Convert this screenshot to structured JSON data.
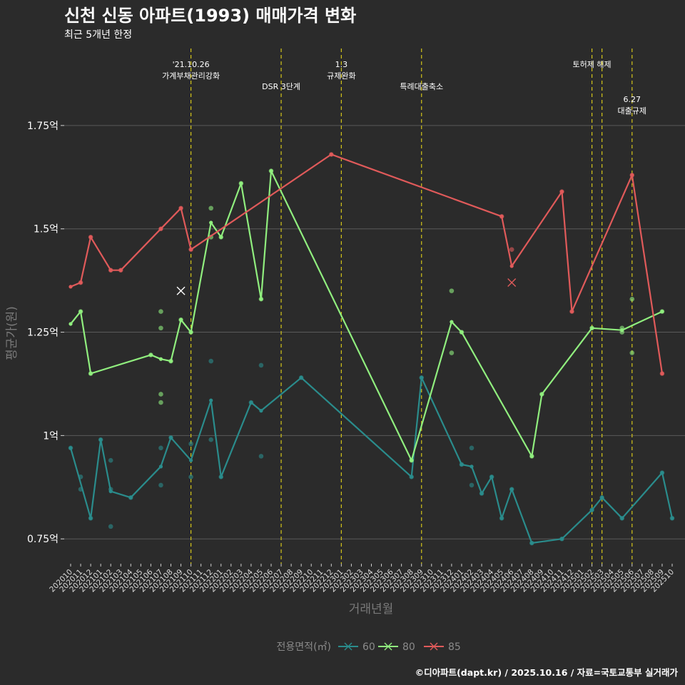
{
  "chart_data": {
    "type": "line",
    "title": "신천 신동 아파트(1993) 매매가격 변화",
    "subtitle": "최근 5개년 한정",
    "xlabel": "거래년월",
    "ylabel": "평균가(원)",
    "ylim": [
      0.69,
      1.95
    ],
    "yticks": [
      {
        "value": 0.75,
        "label": "0.75억"
      },
      {
        "value": 1.0,
        "label": "1억"
      },
      {
        "value": 1.25,
        "label": "1.25억"
      },
      {
        "value": 1.5,
        "label": "1.5억"
      },
      {
        "value": 1.75,
        "label": "1.75억"
      }
    ],
    "categories": [
      "202010",
      "202011",
      "202012",
      "202101",
      "202102",
      "202103",
      "202104",
      "202105",
      "202106",
      "202107",
      "202108",
      "202109",
      "202110",
      "202111",
      "202112",
      "202201",
      "202202",
      "202203",
      "202204",
      "202205",
      "202206",
      "202207",
      "202208",
      "202209",
      "202210",
      "202211",
      "202212",
      "202301",
      "202302",
      "202303",
      "202304",
      "202305",
      "202306",
      "202307",
      "202308",
      "202309",
      "202310",
      "202311",
      "202312",
      "202401",
      "202402",
      "202403",
      "202404",
      "202405",
      "202406",
      "202407",
      "202408",
      "202409",
      "202410",
      "202411",
      "202412",
      "202501",
      "202502",
      "202503",
      "202504",
      "202505",
      "202506",
      "202507",
      "202508",
      "202509",
      "202510"
    ],
    "events": [
      {
        "month": "202110",
        "label_lines": [
          "'21.10.26",
          "가계부채관리강화"
        ],
        "level": 0
      },
      {
        "month": "202207",
        "label_lines": [
          "DSR 3단계"
        ],
        "level": 1
      },
      {
        "month": "202301",
        "label_lines": [
          "1.3",
          "규제완화"
        ],
        "level": 0
      },
      {
        "month": "202309",
        "label_lines": [
          "특례대출축소"
        ],
        "level": 1
      },
      {
        "month": "202502",
        "label_lines": [
          "토허제 해제"
        ],
        "level": 0
      },
      {
        "month": "202503",
        "label_lines": [],
        "level": 0
      },
      {
        "month": "202506",
        "label_lines": [
          "6.27",
          "대출규제"
        ],
        "level": 2
      }
    ],
    "series": [
      {
        "name": "60",
        "color": "#2a8c8c",
        "line": [
          [
            "202010",
            0.97
          ],
          [
            "202012",
            0.8
          ],
          [
            "202101",
            0.99
          ],
          [
            "202102",
            0.865
          ],
          [
            "202104",
            0.85
          ],
          [
            "202107",
            0.925
          ],
          [
            "202108",
            0.995
          ],
          [
            "202110",
            0.94
          ],
          [
            "202112",
            1.085
          ],
          [
            "202201",
            0.9
          ],
          [
            "202204",
            1.08
          ],
          [
            "202205",
            1.06
          ],
          [
            "202209",
            1.14
          ],
          [
            "202308",
            0.9
          ],
          [
            "202309",
            1.14
          ],
          [
            "202401",
            0.93
          ],
          [
            "202402",
            0.925
          ],
          [
            "202403",
            0.86
          ],
          [
            "202404",
            0.9
          ],
          [
            "202405",
            0.8
          ],
          [
            "202406",
            0.87
          ],
          [
            "202408",
            0.74
          ],
          [
            "202411",
            0.75
          ],
          [
            "202502",
            0.82
          ],
          [
            "202503",
            0.85
          ],
          [
            "202505",
            0.8
          ],
          [
            "202509",
            0.91
          ],
          [
            "202510",
            0.8
          ]
        ],
        "points": [
          [
            "202010",
            0.97
          ],
          [
            "202011",
            0.9
          ],
          [
            "202011",
            0.87
          ],
          [
            "202012",
            0.8
          ],
          [
            "202101",
            0.99
          ],
          [
            "202102",
            0.87
          ],
          [
            "202102",
            0.94
          ],
          [
            "202102",
            0.78
          ],
          [
            "202104",
            0.85
          ],
          [
            "202107",
            0.97
          ],
          [
            "202107",
            0.88
          ],
          [
            "202108",
            0.995
          ],
          [
            "202110",
            0.98
          ],
          [
            "202110",
            0.9
          ],
          [
            "202112",
            1.18
          ],
          [
            "202112",
            0.99
          ],
          [
            "202201",
            0.9
          ],
          [
            "202204",
            1.08
          ],
          [
            "202205",
            1.17
          ],
          [
            "202205",
            0.95
          ],
          [
            "202209",
            1.14
          ],
          [
            "202308",
            0.9
          ],
          [
            "202309",
            1.14
          ],
          [
            "202401",
            0.93
          ],
          [
            "202402",
            0.97
          ],
          [
            "202402",
            0.88
          ],
          [
            "202403",
            0.86
          ],
          [
            "202404",
            0.9
          ],
          [
            "202405",
            0.8
          ],
          [
            "202406",
            0.87
          ],
          [
            "202408",
            0.74
          ],
          [
            "202411",
            0.75
          ],
          [
            "202502",
            0.82
          ],
          [
            "202503",
            0.85
          ],
          [
            "202505",
            0.8
          ],
          [
            "202509",
            0.91
          ],
          [
            "202510",
            0.8
          ]
        ],
        "crosses": []
      },
      {
        "name": "80",
        "color": "#90ee7e",
        "line": [
          [
            "202010",
            1.27
          ],
          [
            "202011",
            1.3
          ],
          [
            "202012",
            1.15
          ],
          [
            "202106",
            1.195
          ],
          [
            "202107",
            1.185
          ],
          [
            "202108",
            1.18
          ],
          [
            "202109",
            1.28
          ],
          [
            "202110",
            1.25
          ],
          [
            "202112",
            1.515
          ],
          [
            "202201",
            1.48
          ],
          [
            "202203",
            1.61
          ],
          [
            "202205",
            1.33
          ],
          [
            "202206",
            1.64
          ],
          [
            "202308",
            0.94
          ],
          [
            "202312",
            1.275
          ],
          [
            "202401",
            1.25
          ],
          [
            "202408",
            0.95
          ],
          [
            "202409",
            1.1
          ],
          [
            "202502",
            1.26
          ],
          [
            "202505",
            1.255
          ],
          [
            "202509",
            1.3
          ]
        ],
        "points": [
          [
            "202011",
            1.3
          ],
          [
            "202012",
            1.15
          ],
          [
            "202106",
            1.195
          ],
          [
            "202107",
            1.3
          ],
          [
            "202107",
            1.26
          ],
          [
            "202107",
            1.1
          ],
          [
            "202107",
            1.08
          ],
          [
            "202108",
            1.18
          ],
          [
            "202109",
            1.28
          ],
          [
            "202110",
            1.25
          ],
          [
            "202112",
            1.55
          ],
          [
            "202112",
            1.48
          ],
          [
            "202201",
            1.48
          ],
          [
            "202203",
            1.61
          ],
          [
            "202205",
            1.33
          ],
          [
            "202206",
            1.64
          ],
          [
            "202308",
            0.94
          ],
          [
            "202312",
            1.35
          ],
          [
            "202312",
            1.2
          ],
          [
            "202401",
            1.25
          ],
          [
            "202408",
            0.95
          ],
          [
            "202409",
            1.1
          ],
          [
            "202502",
            1.26
          ],
          [
            "202505",
            1.26
          ],
          [
            "202505",
            1.25
          ],
          [
            "202506",
            1.33
          ],
          [
            "202506",
            1.2
          ],
          [
            "202509",
            1.3
          ]
        ],
        "crosses": [
          [
            "202109",
            1.35
          ]
        ]
      },
      {
        "name": "85",
        "color": "#e05a5a",
        "line": [
          [
            "202010",
            1.36
          ],
          [
            "202011",
            1.37
          ],
          [
            "202012",
            1.48
          ],
          [
            "202102",
            1.4
          ],
          [
            "202103",
            1.4
          ],
          [
            "202107",
            1.5
          ],
          [
            "202109",
            1.55
          ],
          [
            "202110",
            1.45
          ],
          [
            "202212",
            1.68
          ],
          [
            "202405",
            1.53
          ],
          [
            "202406",
            1.41
          ],
          [
            "202411",
            1.59
          ],
          [
            "202412",
            1.3
          ],
          [
            "202506",
            1.63
          ],
          [
            "202509",
            1.15
          ]
        ],
        "points": [
          [
            "202011",
            1.37
          ],
          [
            "202012",
            1.48
          ],
          [
            "202102",
            1.4
          ],
          [
            "202103",
            1.4
          ],
          [
            "202107",
            1.5
          ],
          [
            "202109",
            1.55
          ],
          [
            "202110",
            1.45
          ],
          [
            "202212",
            1.68
          ],
          [
            "202405",
            1.53
          ],
          [
            "202406",
            1.45
          ],
          [
            "202411",
            1.59
          ],
          [
            "202412",
            1.3
          ],
          [
            "202506",
            1.63
          ],
          [
            "202509",
            1.15
          ]
        ],
        "crosses": [
          [
            "202406",
            1.37
          ]
        ]
      }
    ],
    "legend": {
      "title": "전용면적(㎡)",
      "position": "bottom"
    }
  },
  "caption": "©디아파트(dapt.kr) / 2025.10.16 / 자료=국토교통부 실거래가"
}
